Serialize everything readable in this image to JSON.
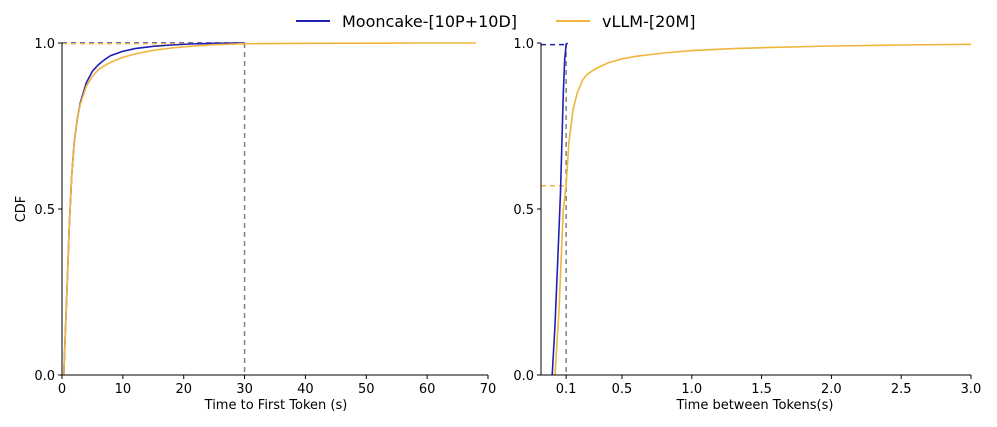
{
  "legend": {
    "placement": "top-center",
    "entries": [
      {
        "label": "Mooncake-[10P+10D]",
        "color": "#1f1fb4"
      },
      {
        "label": "vLLM-[20M]",
        "color": "#f0b53c"
      }
    ]
  },
  "colors": {
    "mooncake": "#1f1fb4",
    "vllm": "#f0b53c",
    "threshold": "#808080"
  },
  "chart_data": [
    {
      "type": "line",
      "title": "",
      "xlabel": "Time to First Token (s)",
      "ylabel": "CDF",
      "xlim": [
        0,
        70
      ],
      "ylim": [
        0,
        1.0
      ],
      "xticks": [
        0,
        10,
        20,
        30,
        40,
        50,
        60,
        70
      ],
      "yticks": [
        0.0,
        0.5,
        1.0
      ],
      "xtick_labels": [
        "0",
        "10",
        "20",
        "30",
        "40",
        "50",
        "60",
        "70"
      ],
      "ytick_labels": [
        "0.0",
        "0.5",
        "1.0"
      ],
      "grid": false,
      "threshold_x": 30,
      "series": [
        {
          "name": "Mooncake-[10P+10D]",
          "x": [
            0.3,
            0.5,
            0.8,
            1.2,
            1.6,
            2.0,
            2.5,
            3.0,
            4.0,
            5.0,
            6.0,
            7.0,
            8.0,
            10.0,
            12.0,
            15.0,
            18.0,
            21.0,
            25.0,
            30.0
          ],
          "y": [
            0.0,
            0.1,
            0.25,
            0.45,
            0.6,
            0.7,
            0.77,
            0.82,
            0.88,
            0.915,
            0.935,
            0.95,
            0.962,
            0.975,
            0.983,
            0.99,
            0.994,
            0.997,
            0.999,
            1.0
          ]
        },
        {
          "name": "vLLM-[20M]",
          "x": [
            0.3,
            0.5,
            0.8,
            1.2,
            1.6,
            2.0,
            2.5,
            3.0,
            4.0,
            5.0,
            6.0,
            7.0,
            8.0,
            10.0,
            12.0,
            15.0,
            18.0,
            21.0,
            25.0,
            30.0,
            40.0,
            50.0,
            60.0,
            68.0
          ],
          "y": [
            0.0,
            0.1,
            0.25,
            0.45,
            0.6,
            0.7,
            0.77,
            0.815,
            0.87,
            0.9,
            0.92,
            0.932,
            0.942,
            0.957,
            0.967,
            0.978,
            0.985,
            0.99,
            0.995,
            0.998,
            0.999,
            0.9995,
            1.0,
            1.0
          ]
        }
      ]
    },
    {
      "type": "line",
      "title": "",
      "xlabel": "Time between Tokens(s)",
      "ylabel": "",
      "xlim": [
        -0.08,
        3.0
      ],
      "ylim": [
        0,
        1.0
      ],
      "xticks": [
        0.1,
        0.5,
        1.0,
        1.5,
        2.0,
        2.5,
        3.0
      ],
      "yticks": [
        0.0,
        0.5,
        1.0
      ],
      "xtick_labels": [
        "0.1",
        "0.5",
        "1.0",
        "1.5",
        "2.0",
        "2.5",
        "3.0"
      ],
      "ytick_labels": [
        "0.0",
        "0.5",
        "1.0"
      ],
      "grid": false,
      "threshold_x": 0.1,
      "series": [
        {
          "name": "Mooncake-[10P+10D]",
          "x": [
            0.0,
            0.02,
            0.04,
            0.06,
            0.07,
            0.08,
            0.09,
            0.1,
            0.11
          ],
          "y": [
            0.0,
            0.15,
            0.35,
            0.55,
            0.7,
            0.85,
            0.95,
            0.995,
            1.0
          ]
        },
        {
          "name": "vLLM-[20M]",
          "x": [
            0.02,
            0.05,
            0.08,
            0.1,
            0.12,
            0.15,
            0.18,
            0.22,
            0.25,
            0.3,
            0.4,
            0.5,
            0.6,
            0.8,
            1.0,
            1.3,
            1.6,
            2.0,
            2.5,
            3.0
          ],
          "y": [
            0.0,
            0.2,
            0.5,
            0.57,
            0.7,
            0.8,
            0.85,
            0.89,
            0.905,
            0.92,
            0.94,
            0.952,
            0.96,
            0.97,
            0.977,
            0.983,
            0.987,
            0.991,
            0.994,
            0.996
          ]
        }
      ]
    }
  ]
}
